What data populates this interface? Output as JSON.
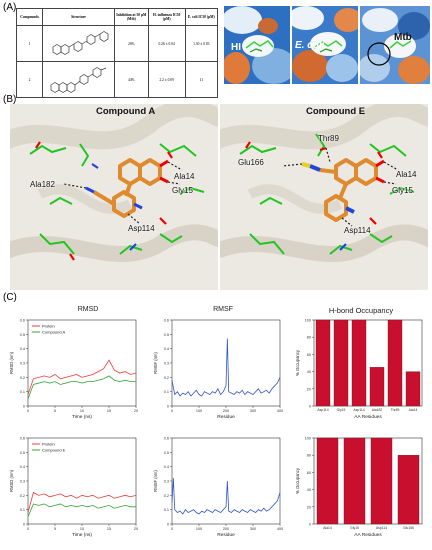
{
  "panels": {
    "a": "(A)",
    "b": "(B)",
    "c": "(C)"
  },
  "table": {
    "headers": [
      "Compounds",
      "Structure",
      "Inhibition at 50 µM (Mtb)",
      "H. influenza IC50 (µM)",
      "E. coli IC50 (µM)"
    ],
    "rows": [
      {
        "compound": "1",
        "inhibition": "26%",
        "hi": "0.26 ± 0.04",
        "ec": "1.30 ± 0.03"
      },
      {
        "compound": "2",
        "inhibition": "44%",
        "hi": "2.2 ± 0.09",
        "ec": "11"
      }
    ]
  },
  "surfaces": [
    {
      "label": "HI"
    },
    {
      "label": "E. coli"
    },
    {
      "label": "Mtb"
    }
  ],
  "dock_a": {
    "title": "Compound A",
    "residues": [
      "Ala14",
      "Gly15",
      "Ala182",
      "Asp114"
    ]
  },
  "dock_e": {
    "title": "Compound E",
    "residues": [
      "Thr89",
      "Glu166",
      "Ala14",
      "Gly15",
      "Asp114"
    ]
  },
  "colors": {
    "protein": "#ee3b3b",
    "ligand": "#3aa33a",
    "rmsf": "#3355cc",
    "bar": "#c8102e",
    "orange": "#e08a2e",
    "ligand_stick": "#2fd12f"
  },
  "chart_data": [
    {
      "type": "line",
      "title": "RMSD",
      "xlabel": "Time (ns)",
      "ylabel": "RMSD (nm)",
      "xlim": [
        0,
        20
      ],
      "ylim": [
        0,
        0.6
      ],
      "xticks": [
        0,
        5,
        10,
        15,
        20
      ],
      "yticks": [
        0,
        0.1,
        0.2,
        0.3,
        0.4,
        0.5,
        0.6
      ],
      "legend": "top-left",
      "series": [
        {
          "name": "Protein",
          "x": [
            0,
            1,
            2,
            3,
            4,
            5,
            6,
            7,
            8,
            9,
            10,
            11,
            12,
            13,
            14,
            15,
            16,
            17,
            18,
            19,
            20
          ],
          "y": [
            0.08,
            0.19,
            0.2,
            0.21,
            0.2,
            0.22,
            0.19,
            0.2,
            0.21,
            0.22,
            0.2,
            0.21,
            0.22,
            0.24,
            0.26,
            0.32,
            0.25,
            0.23,
            0.24,
            0.22,
            0.23
          ]
        },
        {
          "name": "Compound A",
          "x": [
            0,
            1,
            2,
            3,
            4,
            5,
            6,
            7,
            8,
            9,
            10,
            11,
            12,
            13,
            14,
            15,
            16,
            17,
            18,
            19,
            20
          ],
          "y": [
            0.05,
            0.15,
            0.16,
            0.17,
            0.16,
            0.17,
            0.15,
            0.16,
            0.17,
            0.17,
            0.16,
            0.17,
            0.17,
            0.18,
            0.19,
            0.21,
            0.18,
            0.17,
            0.18,
            0.17,
            0.17
          ]
        }
      ]
    },
    {
      "type": "line",
      "title": "RMSF",
      "xlabel": "Residue",
      "ylabel": "RMSF (nm)",
      "xlim": [
        0,
        400
      ],
      "ylim": [
        0,
        0.6
      ],
      "xticks": [
        0,
        100,
        200,
        300,
        400
      ],
      "yticks": [
        0,
        0.1,
        0.2,
        0.3,
        0.4,
        0.5,
        0.6
      ],
      "series": [
        {
          "name": "",
          "x": [
            0,
            10,
            20,
            30,
            40,
            50,
            60,
            70,
            80,
            90,
            100,
            110,
            120,
            130,
            140,
            150,
            160,
            170,
            180,
            190,
            200,
            205,
            210,
            220,
            230,
            240,
            250,
            260,
            270,
            280,
            290,
            300,
            310,
            320,
            330,
            340,
            350,
            360,
            370,
            380,
            390,
            400
          ],
          "y": [
            0.18,
            0.08,
            0.1,
            0.07,
            0.09,
            0.08,
            0.1,
            0.07,
            0.09,
            0.11,
            0.08,
            0.07,
            0.1,
            0.09,
            0.08,
            0.1,
            0.09,
            0.12,
            0.08,
            0.1,
            0.14,
            0.47,
            0.1,
            0.09,
            0.08,
            0.1,
            0.09,
            0.11,
            0.08,
            0.1,
            0.09,
            0.08,
            0.1,
            0.12,
            0.09,
            0.1,
            0.11,
            0.09,
            0.12,
            0.14,
            0.16,
            0.2
          ]
        }
      ]
    },
    {
      "type": "bar",
      "title": "H-bond Occupancy",
      "xlabel": "AA Residues",
      "ylabel": "% Occupancy",
      "ylim": [
        0,
        100
      ],
      "yticks": [
        0,
        20,
        40,
        60,
        80,
        100
      ],
      "categories": [
        "Asp114",
        "Gly15",
        "Asp114",
        "Ala182",
        "Thr89",
        "Ala14"
      ],
      "values": [
        100,
        100,
        100,
        45,
        100,
        40
      ]
    },
    {
      "type": "line",
      "title": "",
      "xlabel": "Time (ns)",
      "ylabel": "RMSD (nm)",
      "xlim": [
        0,
        20
      ],
      "ylim": [
        0,
        0.6
      ],
      "xticks": [
        0,
        5,
        10,
        15,
        20
      ],
      "yticks": [
        0,
        0.1,
        0.2,
        0.3,
        0.4,
        0.5,
        0.6
      ],
      "legend": "top-left",
      "series": [
        {
          "name": "Protein",
          "x": [
            0,
            1,
            2,
            3,
            4,
            5,
            6,
            7,
            8,
            9,
            10,
            11,
            12,
            13,
            14,
            15,
            16,
            17,
            18,
            19,
            20
          ],
          "y": [
            0.08,
            0.22,
            0.2,
            0.21,
            0.19,
            0.2,
            0.21,
            0.19,
            0.2,
            0.18,
            0.2,
            0.19,
            0.2,
            0.18,
            0.19,
            0.2,
            0.18,
            0.19,
            0.2,
            0.19,
            0.2
          ]
        },
        {
          "name": "Compound E",
          "x": [
            0,
            1,
            2,
            3,
            4,
            5,
            6,
            7,
            8,
            9,
            10,
            11,
            12,
            13,
            14,
            15,
            16,
            17,
            18,
            19,
            20
          ],
          "y": [
            0.05,
            0.14,
            0.13,
            0.14,
            0.12,
            0.13,
            0.14,
            0.12,
            0.13,
            0.12,
            0.13,
            0.12,
            0.13,
            0.11,
            0.12,
            0.13,
            0.11,
            0.12,
            0.13,
            0.12,
            0.12
          ]
        }
      ]
    },
    {
      "type": "line",
      "title": "",
      "xlabel": "Residue",
      "ylabel": "RMSF (nm)",
      "xlim": [
        0,
        400
      ],
      "ylim": [
        0,
        0.6
      ],
      "xticks": [
        0,
        100,
        200,
        300,
        400
      ],
      "yticks": [
        0,
        0.1,
        0.2,
        0.3,
        0.4,
        0.5,
        0.6
      ],
      "series": [
        {
          "name": "",
          "x": [
            0,
            5,
            10,
            20,
            30,
            40,
            50,
            60,
            70,
            80,
            90,
            100,
            110,
            120,
            130,
            140,
            150,
            160,
            170,
            180,
            190,
            200,
            205,
            210,
            220,
            230,
            240,
            250,
            260,
            270,
            280,
            290,
            300,
            310,
            320,
            330,
            340,
            350,
            360,
            370,
            380,
            390,
            400
          ],
          "y": [
            0.15,
            0.32,
            0.1,
            0.08,
            0.09,
            0.07,
            0.1,
            0.08,
            0.09,
            0.1,
            0.08,
            0.07,
            0.09,
            0.08,
            0.1,
            0.09,
            0.08,
            0.1,
            0.09,
            0.08,
            0.1,
            0.12,
            0.3,
            0.09,
            0.08,
            0.1,
            0.09,
            0.08,
            0.1,
            0.09,
            0.08,
            0.1,
            0.09,
            0.08,
            0.1,
            0.09,
            0.11,
            0.09,
            0.1,
            0.12,
            0.14,
            0.16,
            0.22
          ]
        }
      ]
    },
    {
      "type": "bar",
      "title": "",
      "xlabel": "AA Residues",
      "ylabel": "% Occupancy",
      "ylim": [
        0,
        100
      ],
      "yticks": [
        0,
        20,
        40,
        60,
        80,
        100
      ],
      "categories": [
        "Ala14",
        "Gly15",
        "Asp114",
        "Glu166"
      ],
      "values": [
        100,
        100,
        100,
        80
      ]
    }
  ]
}
